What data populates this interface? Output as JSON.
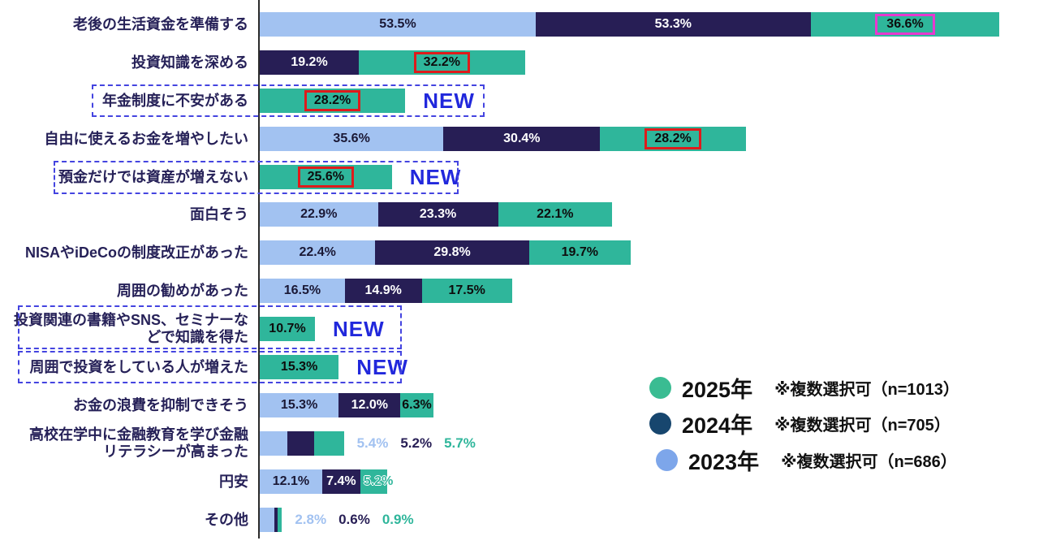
{
  "chart_data": {
    "type": "bar",
    "orientation": "horizontal",
    "stacked": true,
    "unit": "%",
    "grid": false,
    "axis_line": true,
    "new_label": "NEW",
    "colors": {
      "bar_2023": "#a2c2f1",
      "bar_2024": "#271e55",
      "bar_2025": "#2fb69b",
      "legend_2025": "#3abc92",
      "legend_2024": "#17466e",
      "legend_2023": "#7da6ea",
      "new_text": "#2128dc",
      "dashed_border": "#4444e0",
      "red_highlight": "#df1b1b",
      "magenta_highlight": "#e838cf",
      "category_text": "#262158"
    },
    "legend": [
      {
        "year": "2025年",
        "note": "※複数選択可（n=1013）",
        "series": "2025"
      },
      {
        "year": "2024年",
        "note": "※複数選択可（n=705）",
        "series": "2024"
      },
      {
        "year": "2023年",
        "note": "※複数選択可（n=686）",
        "series": "2023"
      }
    ],
    "series_order": [
      "2023",
      "2024",
      "2025"
    ],
    "rows": [
      {
        "category": "老後の生活資金を準備する",
        "values": {
          "2023": 53.5,
          "2024": 53.3,
          "2025": 36.6
        },
        "highlight": {
          "series": "2025",
          "style": "magenta"
        }
      },
      {
        "category": "投資知識を深める",
        "values": {
          "2024": 19.2,
          "2025": 32.2
        },
        "highlight": {
          "series": "2025",
          "style": "red"
        }
      },
      {
        "category": "年金制度に不安がある",
        "values": {
          "2025": 28.2
        },
        "highlight": {
          "series": "2025",
          "style": "red"
        },
        "new": true
      },
      {
        "category": "自由に使えるお金を増やしたい",
        "values": {
          "2023": 35.6,
          "2024": 30.4,
          "2025": 28.2
        },
        "highlight": {
          "series": "2025",
          "style": "red"
        }
      },
      {
        "category": "預金だけでは資産が増えない",
        "values": {
          "2025": 25.6
        },
        "highlight": {
          "series": "2025",
          "style": "red"
        },
        "new": true
      },
      {
        "category": "面白そう",
        "values": {
          "2023": 22.9,
          "2024": 23.3,
          "2025": 22.1
        }
      },
      {
        "category": "NISAやiDeCoの制度改正があった",
        "values": {
          "2023": 22.4,
          "2024": 29.8,
          "2025": 19.7
        }
      },
      {
        "category": "周囲の勧めがあった",
        "values": {
          "2023": 16.5,
          "2024": 14.9,
          "2025": 17.5
        }
      },
      {
        "category": "投資関連の書籍やSNS、セミナーなどで知識を得た",
        "label_lines": [
          "投資関連の書籍やSNS、セミナーな",
          "どで知識を得た"
        ],
        "values": {
          "2025": 10.7
        },
        "new": true
      },
      {
        "category": "周囲で投資をしている人が増えた",
        "values": {
          "2025": 15.3
        },
        "new": true
      },
      {
        "category": "お金の浪費を抑制できそう",
        "values": {
          "2023": 15.3,
          "2024": 12.0,
          "2025": 6.3
        }
      },
      {
        "category": "高校在学中に金融教育を学び金融リテラシーが高まった",
        "label_lines": [
          "高校在学中に金融教育を学び金融",
          "リテラシーが高まった"
        ],
        "values": {
          "2023": 5.4,
          "2024": 5.2,
          "2025": 5.7
        },
        "value_labels": "outside"
      },
      {
        "category": "円安",
        "values": {
          "2023": 12.1,
          "2024": 7.4,
          "2025": 5.2
        },
        "overflow_last_label": true
      },
      {
        "category": "その他",
        "values": {
          "2023": 2.8,
          "2024": 0.6,
          "2025": 0.9
        },
        "value_labels": "outside"
      }
    ]
  }
}
